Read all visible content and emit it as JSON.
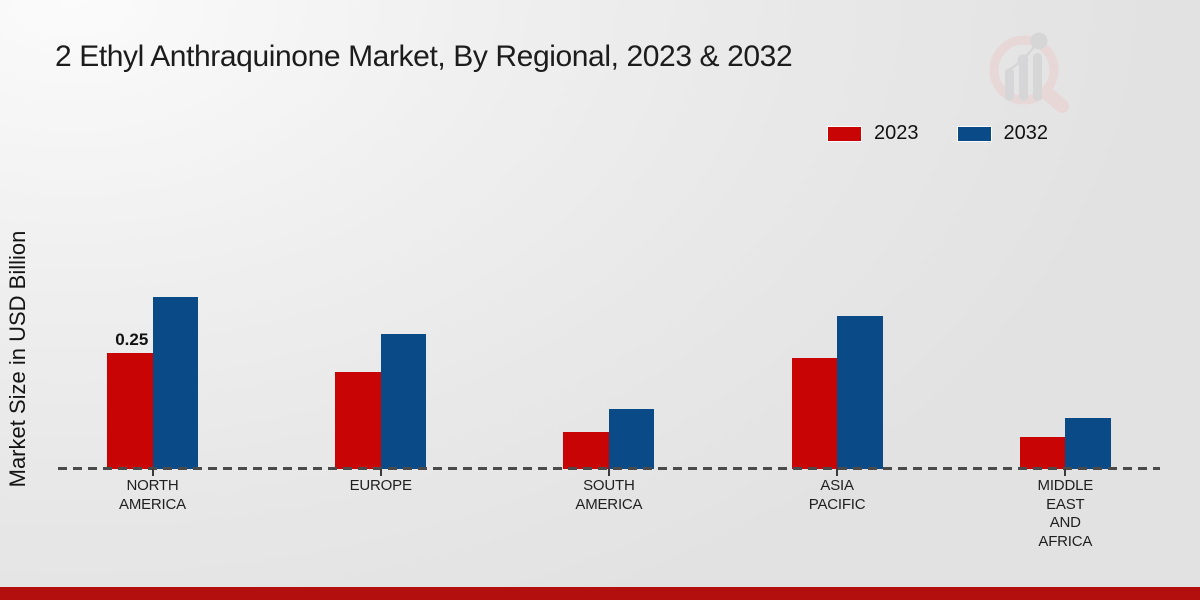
{
  "page": {
    "title": "2 Ethyl Anthraquinone Market, By Regional, 2023 & 2032",
    "ylabel": "Market Size in USD Billion",
    "footer_accent_color": "#b40f0f",
    "logo_icon": "magnifier-bar-chart-watermark"
  },
  "chart_data": {
    "type": "bar",
    "title": "2 Ethyl Anthraquinone Market, By Regional, 2023 & 2032",
    "xlabel": "",
    "ylabel": "Market Size in USD Billion",
    "categories": [
      "North America",
      "Europe",
      "South America",
      "Asia Pacific",
      "Middle East and Africa"
    ],
    "category_label_lines": [
      [
        "NORTH",
        "AMERICA"
      ],
      [
        "EUROPE"
      ],
      [
        "SOUTH",
        "AMERICA"
      ],
      [
        "ASIA",
        "PACIFIC"
      ],
      [
        "MIDDLE",
        "EAST",
        "AND",
        "AFRICA"
      ]
    ],
    "series": [
      {
        "name": "2023",
        "color": "#c80404",
        "values": [
          0.25,
          0.21,
          0.08,
          0.24,
          0.07
        ]
      },
      {
        "name": "2032",
        "color": "#0a4a87",
        "values": [
          0.37,
          0.29,
          0.13,
          0.33,
          0.11
        ]
      }
    ],
    "data_labels": [
      {
        "category_index": 0,
        "series_index": 0,
        "text": "0.25"
      }
    ],
    "ylim": [
      0,
      0.4
    ],
    "axis": {
      "baseline_style": "dashed",
      "gridlines": false,
      "y_ticks_visible": false
    },
    "legend_position": "top-right"
  }
}
